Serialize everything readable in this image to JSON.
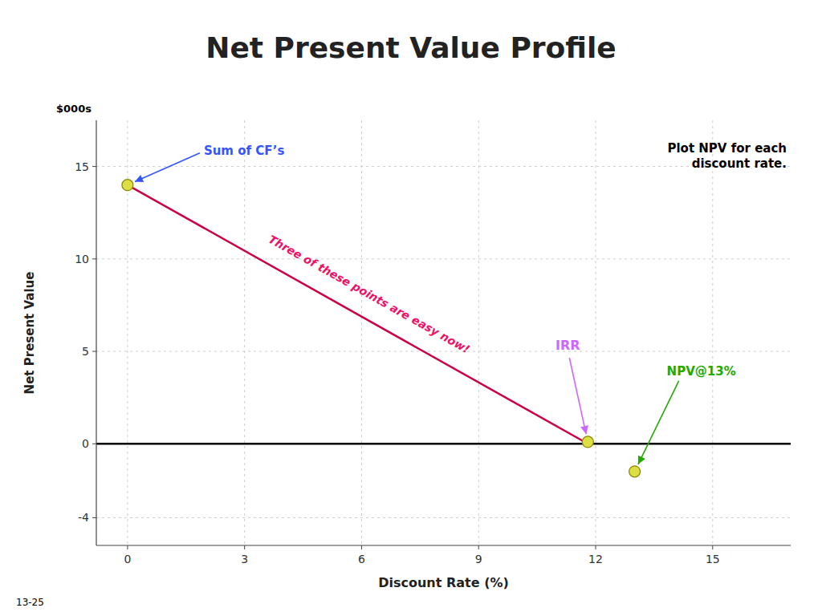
{
  "chart_data": {
    "type": "line",
    "title": "Net Present Value Profile",
    "x_label": "Discount Rate (%)",
    "y_label": "Net Present Value",
    "xlim": [
      -0.8,
      17
    ],
    "ylim": [
      -5.5,
      17.5
    ],
    "xticks": [
      0,
      3,
      6,
      9,
      12,
      15
    ],
    "yticks": [
      -4,
      0,
      5,
      10,
      15
    ],
    "grid": true,
    "series": [
      {
        "type": "line",
        "color": "#CC0044",
        "x": [
          0,
          11.8
        ],
        "values": [
          14.0,
          0.0
        ]
      },
      {
        "type": "scatter",
        "marker": "circle",
        "color": "#DDDD44",
        "x": [
          0,
          11.8,
          13.0
        ],
        "values": [
          14.0,
          0.1,
          -1.5
        ]
      }
    ],
    "annotations": [
      {
        "text": "Sum of CF’s",
        "color": "#3355FF"
      },
      {
        "text": "IRR",
        "color": "#CC66FF"
      },
      {
        "text": "NPV@13%",
        "color": "#22AA00"
      },
      {
        "text": "Three of these points are easy now!",
        "color": "#EE1166"
      },
      {
        "text": "Plot NPV for each\ndiscount rate.",
        "color": "#000000"
      },
      {
        "text": "$000s",
        "color": "#000000"
      },
      {
        "text": "13-25",
        "color": "#000000"
      }
    ]
  }
}
